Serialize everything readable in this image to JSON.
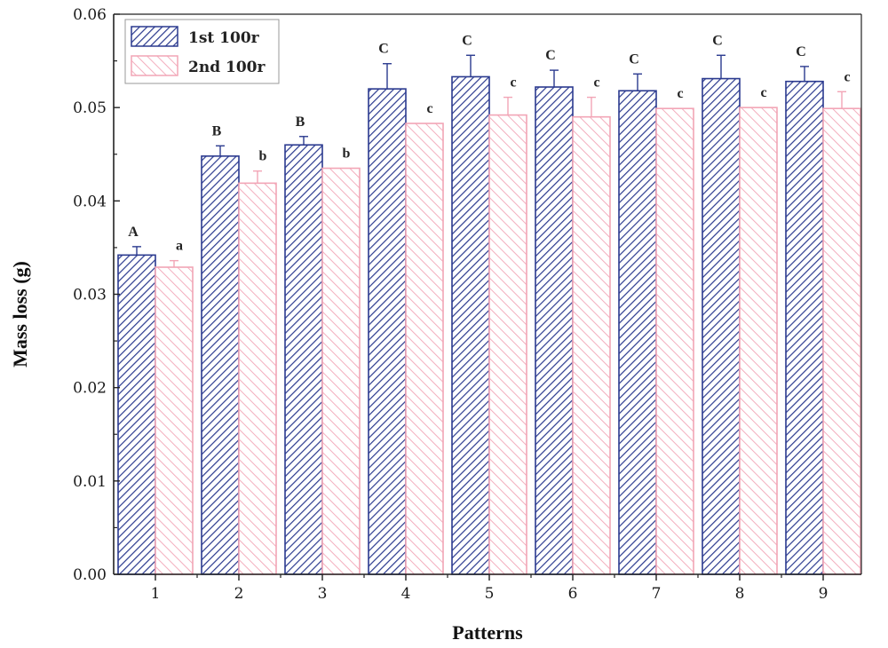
{
  "chart_data": {
    "type": "bar",
    "title": "",
    "xlabel": "Patterns",
    "ylabel": "Mass loss (g)",
    "ylim": [
      0,
      0.06
    ],
    "yticks": [
      "0.00",
      "0.01",
      "0.02",
      "0.03",
      "0.04",
      "0.05",
      "0.06"
    ],
    "categories": [
      "1",
      "2",
      "3",
      "4",
      "5",
      "6",
      "7",
      "8",
      "9"
    ],
    "legend_position": "top-left",
    "series": [
      {
        "name": "1st 100r",
        "color": "#2b3a8f",
        "values": [
          0.0342,
          0.0448,
          0.046,
          0.052,
          0.0533,
          0.0522,
          0.0518,
          0.0531,
          0.0528
        ],
        "errors": [
          0.0009,
          0.0011,
          0.0009,
          0.0027,
          0.0023,
          0.0018,
          0.0018,
          0.0025,
          0.0016
        ],
        "labels": [
          "A",
          "B",
          "B",
          "C",
          "C",
          "C",
          "C",
          "C",
          "C"
        ]
      },
      {
        "name": "2nd 100r",
        "color": "#f2a5b6",
        "values": [
          0.0329,
          0.0419,
          0.0435,
          0.0483,
          0.0492,
          0.049,
          0.0499,
          0.05,
          0.0499
        ],
        "errors": [
          0.0007,
          0.0013,
          0.0,
          0.0,
          0.0019,
          0.0021,
          0.0,
          0.0,
          0.0018
        ],
        "labels": [
          "a",
          "b",
          "b",
          "c",
          "c",
          "c",
          "c",
          "c",
          "c"
        ]
      }
    ]
  }
}
